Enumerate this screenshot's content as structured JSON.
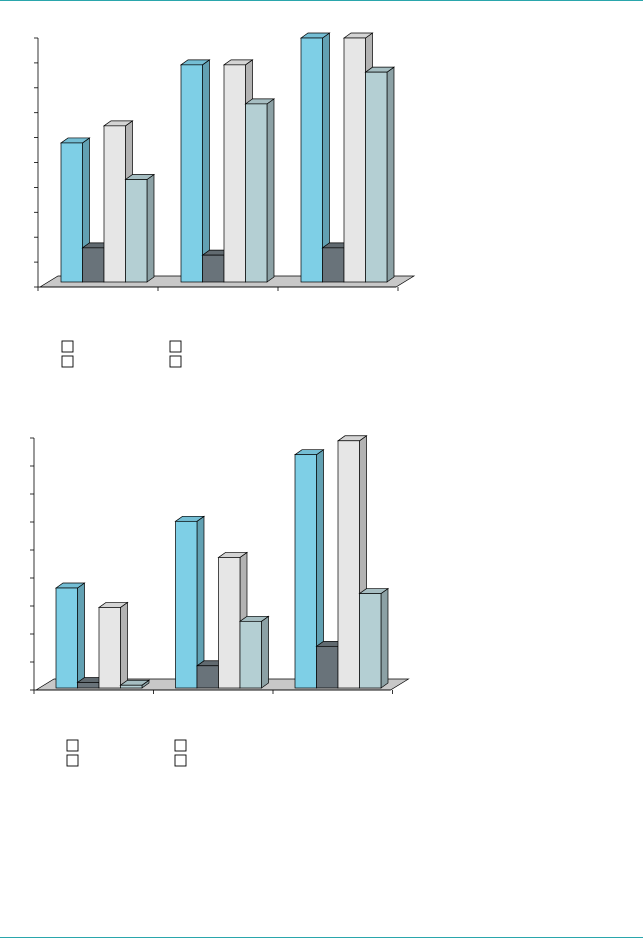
{
  "page": {
    "rule_color": "#2aa6ac"
  },
  "chart_data": [
    {
      "type": "bar",
      "style": "3d-clustered",
      "title": "",
      "xlabel": "",
      "ylabel": "",
      "categories": [
        "",
        "",
        ""
      ],
      "ylim": [
        0,
        10
      ],
      "y_ticks": [
        0,
        1,
        2,
        3,
        4,
        5,
        6,
        7,
        8,
        9,
        10
      ],
      "grid": false,
      "legend_position": "bottom-left",
      "series": [
        {
          "color": "#7ecfe6",
          "values": [
            5.7,
            8.9,
            10.0
          ]
        },
        {
          "color": "#69737a",
          "values": [
            1.4,
            1.1,
            1.4
          ]
        },
        {
          "color": "#e6e6e6",
          "values": [
            6.4,
            8.9,
            10.0
          ]
        },
        {
          "color": "#b4cfd3",
          "values": [
            4.2,
            7.3,
            8.6
          ]
        }
      ]
    },
    {
      "type": "bar",
      "style": "3d-clustered",
      "title": "",
      "xlabel": "",
      "ylabel": "",
      "categories": [
        "",
        "",
        ""
      ],
      "ylim": [
        0,
        9
      ],
      "y_ticks": [
        0,
        1,
        2,
        3,
        4,
        5,
        6,
        7,
        8,
        9
      ],
      "grid": false,
      "legend_position": "bottom-left",
      "series": [
        {
          "color": "#7ecfe6",
          "values": [
            3.6,
            6.0,
            8.4
          ]
        },
        {
          "color": "#69737a",
          "values": [
            0.2,
            0.8,
            1.5
          ]
        },
        {
          "color": "#e6e6e6",
          "values": [
            2.9,
            4.7,
            8.9
          ]
        },
        {
          "color": "#b4cfd3",
          "values": [
            0.1,
            2.4,
            3.4
          ]
        }
      ]
    }
  ]
}
